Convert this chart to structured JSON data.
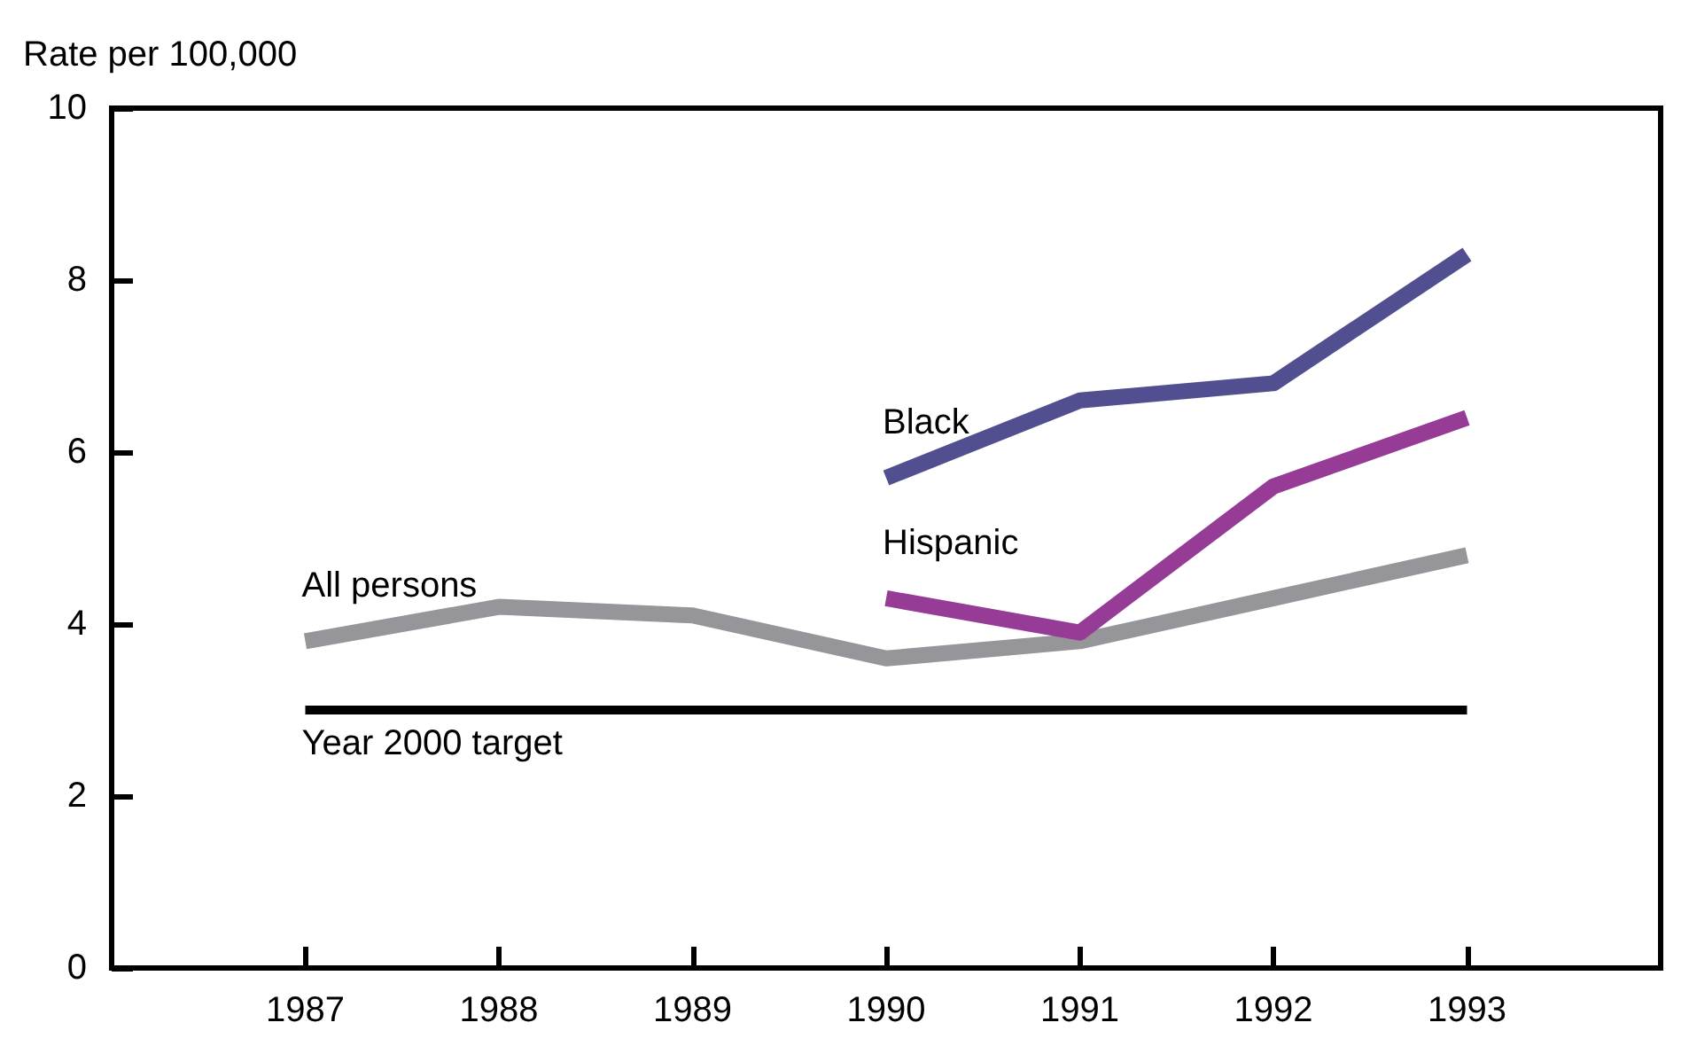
{
  "chart_data": {
    "type": "line",
    "ylabel": "Rate per 100,000",
    "x": [
      1987,
      1988,
      1989,
      1990,
      1991,
      1992,
      1993
    ],
    "xlim": [
      1986,
      1994
    ],
    "xticks": [
      1987,
      1988,
      1989,
      1990,
      1991,
      1992,
      1993
    ],
    "ylim": [
      0,
      10
    ],
    "yticks": [
      0,
      2,
      4,
      6,
      8,
      10
    ],
    "grid": false,
    "legend": false,
    "marker": "none",
    "line_style": "solid",
    "series": [
      {
        "name": "All persons",
        "color": "#96969a",
        "values": [
          3.8,
          4.2,
          4.1,
          3.6,
          3.8,
          4.3,
          4.8
        ]
      },
      {
        "name": "Black",
        "color": "#524f91",
        "values": [
          null,
          null,
          null,
          5.7,
          6.6,
          6.8,
          8.3
        ]
      },
      {
        "name": "Hispanic",
        "color": "#963c96",
        "values": [
          null,
          null,
          null,
          4.3,
          3.9,
          5.6,
          6.4
        ]
      },
      {
        "name": "Year 2000 target",
        "color": "#000000",
        "values": [
          3,
          3,
          3,
          3,
          3,
          3,
          3
        ]
      }
    ]
  }
}
